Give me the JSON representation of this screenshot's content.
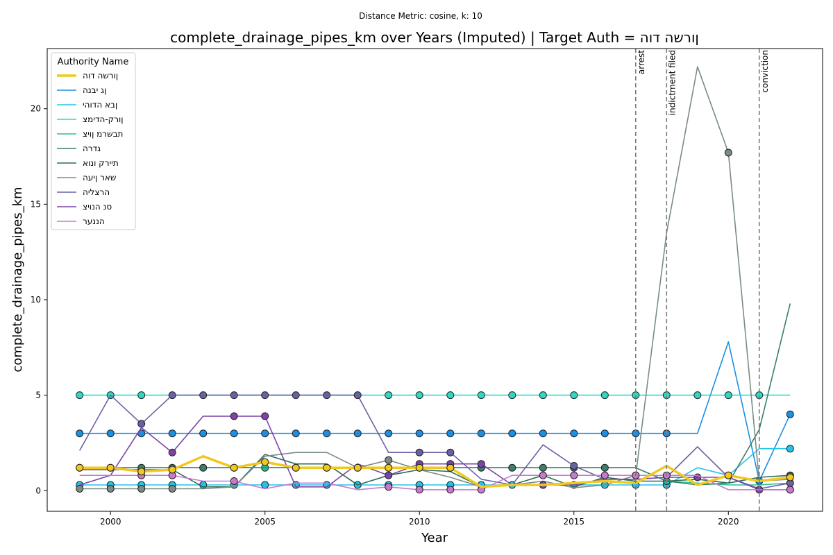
{
  "chart_data": {
    "type": "line",
    "suptitle": "Distance Metric: cosine, k: 10",
    "title": "complete_drainage_pipes_km over Years (Imputed) | Target Auth = ןורשה דוה",
    "xlabel": "Year",
    "ylabel": "complete_drainage_pipes_km",
    "xlim": [
      1997.95,
      2023.05
    ],
    "ylim": [
      -1.08,
      23.15
    ],
    "xticks": [
      2000,
      2005,
      2010,
      2015,
      2020
    ],
    "yticks": [
      0,
      5,
      10,
      15,
      20
    ],
    "grid": false,
    "legend_title": "Authority Name",
    "legend_placement": "upper-left",
    "x": [
      1999,
      2000,
      2001,
      2002,
      2003,
      2004,
      2005,
      2006,
      2007,
      2008,
      2009,
      2010,
      2011,
      2012,
      2013,
      2014,
      2015,
      2016,
      2017,
      2018,
      2019,
      2020,
      2021,
      2022
    ],
    "events": [
      {
        "x": 2017,
        "label": "arrest"
      },
      {
        "x": 2018,
        "label": "indictment filed"
      },
      {
        "x": 2021,
        "label": "conviction"
      }
    ],
    "series": [
      {
        "name": "ןורשה דוה",
        "color": "#f2c81e",
        "target": true,
        "values": [
          1.2,
          1.2,
          1.0,
          1.1,
          1.8,
          1.2,
          1.5,
          1.2,
          1.2,
          1.2,
          1.2,
          1.2,
          1.2,
          0.2,
          0.3,
          0.3,
          0.4,
          0.5,
          0.4,
          1.3,
          0.3,
          0.8,
          0.5,
          0.7
        ],
        "markers": [
          1,
          1,
          1,
          1,
          0,
          1,
          1,
          1,
          1,
          1,
          1,
          1,
          1,
          0,
          0,
          0,
          0,
          0,
          0,
          0,
          0,
          1,
          0,
          1
        ]
      },
      {
        "name": "ןג יבנה",
        "color": "#1a8fe3",
        "values": [
          3,
          3,
          3,
          3,
          3,
          3,
          3,
          3,
          3,
          3,
          3,
          3,
          3,
          3,
          3,
          3,
          3,
          3,
          3,
          3,
          3,
          7.8,
          0.5,
          4.0
        ],
        "markers": [
          1,
          1,
          1,
          1,
          1,
          1,
          1,
          1,
          1,
          1,
          1,
          1,
          1,
          1,
          1,
          1,
          1,
          1,
          1,
          1,
          0,
          0,
          1,
          1
        ]
      },
      {
        "name": "ןבא הדוהי",
        "color": "#22c3eb",
        "values": [
          0.3,
          0.3,
          0.3,
          0.3,
          0.3,
          0.3,
          0.3,
          0.3,
          0.3,
          0.3,
          0.3,
          0.3,
          0.3,
          0.3,
          0.3,
          0.3,
          0.3,
          0.3,
          0.3,
          0.3,
          1.2,
          0.8,
          2.2,
          2.2
        ],
        "markers": [
          1,
          1,
          1,
          1,
          1,
          1,
          1,
          1,
          1,
          1,
          1,
          1,
          1,
          1,
          1,
          1,
          1,
          1,
          1,
          1,
          0,
          1,
          0,
          1
        ]
      },
      {
        "name": "ןורק-הדימצ",
        "color": "#2ed8c3",
        "values": [
          5,
          5,
          5,
          5,
          5,
          5,
          5,
          5,
          5,
          5,
          5,
          5,
          5,
          5,
          5,
          5,
          5,
          5,
          5,
          5,
          5,
          5,
          5,
          5
        ],
        "markers": [
          1,
          1,
          1,
          0,
          0,
          0,
          0,
          0,
          0,
          0,
          1,
          1,
          1,
          1,
          1,
          1,
          1,
          1,
          1,
          1,
          1,
          1,
          1,
          0
        ]
      },
      {
        "name": "תבשרמ ןויצ",
        "color": "#25c194",
        "values": [
          1.2,
          1.2,
          1.2,
          1.2,
          1.2,
          1.2,
          1.2,
          1.2,
          1.2,
          1.2,
          1.2,
          1.2,
          1.2,
          1.2,
          1.2,
          1.2,
          1.2,
          1.2,
          1.2,
          0.5,
          0.4,
          0.3,
          0.3,
          0.4
        ],
        "markers": [
          0,
          0,
          0,
          0,
          0,
          0,
          1,
          0,
          0,
          0,
          0,
          0,
          0,
          0,
          0,
          0,
          0,
          0,
          0,
          1,
          0,
          0,
          0,
          0
        ]
      },
      {
        "name": "גדרה",
        "color": "#3a7f6b",
        "values": [
          1.2,
          1.2,
          1.2,
          1.2,
          1.2,
          1.2,
          1.2,
          1.2,
          1.2,
          1.2,
          1.2,
          1.2,
          1.2,
          1.2,
          1.2,
          1.2,
          1.2,
          1.2,
          1.2,
          0.5,
          0.3,
          0.4,
          3.2,
          9.8
        ],
        "markers": [
          1,
          1,
          1,
          1,
          1,
          1,
          0,
          1,
          1,
          1,
          1,
          1,
          1,
          1,
          1,
          1,
          1,
          1,
          0,
          0,
          0,
          0,
          0,
          0
        ]
      },
      {
        "name": "תיירק ונוא",
        "color": "#2f6b57",
        "values": [
          1.1,
          1.1,
          1.1,
          1.1,
          0.2,
          0.2,
          1.9,
          1.4,
          1.4,
          0.3,
          0.8,
          1.1,
          1.0,
          0.2,
          0.3,
          0.8,
          0.2,
          0.7,
          0.5,
          0.5,
          0.6,
          0.4,
          0.7,
          0.8
        ],
        "markers": [
          0,
          0,
          0,
          0,
          0,
          0,
          0,
          0,
          0,
          0,
          0,
          0,
          0,
          0,
          0,
          0,
          0,
          0,
          0,
          0,
          0,
          0,
          0,
          1
        ]
      },
      {
        "name": "שאר ןיעה",
        "color": "#7a8c85",
        "values": [
          0.1,
          0.1,
          0.1,
          0.1,
          0.1,
          0.2,
          1.8,
          2.0,
          2.0,
          1.2,
          1.6,
          1.1,
          0.7,
          0.2,
          0.3,
          0.5,
          0.15,
          0.3,
          0.8,
          13.5,
          22.2,
          17.7,
          0.5,
          0.6
        ],
        "markers": [
          1,
          1,
          1,
          1,
          0,
          0,
          0,
          0,
          0,
          0,
          1,
          0,
          0,
          0,
          0,
          0,
          0,
          0,
          1,
          0,
          0,
          1,
          0,
          0
        ]
      },
      {
        "name": "הרצליה",
        "color": "#6a60a6",
        "values": [
          2.1,
          5.0,
          3.5,
          5.0,
          5.0,
          5.0,
          5.0,
          5.0,
          5.0,
          5.0,
          2.0,
          2.0,
          2.0,
          0.6,
          0.3,
          2.4,
          1.3,
          0.6,
          0.6,
          0.7,
          2.3,
          0.7,
          0.1,
          0.4
        ],
        "markers": [
          0,
          0,
          1,
          1,
          1,
          1,
          1,
          1,
          1,
          1,
          0,
          1,
          1,
          0,
          0,
          0,
          1,
          0,
          0,
          0,
          0,
          0,
          0,
          1
        ]
      },
      {
        "name": "סנ הנויצ",
        "color": "#7c44a8",
        "values": [
          0.3,
          0.8,
          3.3,
          2.0,
          3.9,
          3.9,
          3.9,
          0.2,
          0.2,
          1.4,
          0.8,
          1.4,
          1.4,
          1.4,
          0.3,
          0.3,
          0.3,
          0.6,
          0.6,
          0.7,
          0.7,
          0.7,
          0.05,
          0.05
        ],
        "markers": [
          0,
          0,
          0,
          1,
          0,
          1,
          1,
          0,
          0,
          0,
          1,
          1,
          1,
          1,
          0,
          1,
          0,
          0,
          0,
          0,
          1,
          0,
          1,
          1
        ]
      },
      {
        "name": "הננער",
        "color": "#c879cf",
        "values": [
          0.8,
          0.8,
          0.8,
          0.8,
          0.5,
          0.5,
          0.1,
          0.4,
          0.4,
          0.05,
          0.2,
          0.05,
          0.05,
          0.05,
          0.8,
          0.8,
          0.8,
          0.8,
          0.8,
          0.8,
          0.8,
          0.05,
          0.05,
          0.05
        ],
        "markers": [
          0,
          0,
          1,
          1,
          0,
          1,
          0,
          0,
          0,
          0,
          1,
          1,
          1,
          1,
          0,
          1,
          1,
          1,
          1,
          1,
          0,
          0,
          0,
          1
        ]
      }
    ]
  }
}
